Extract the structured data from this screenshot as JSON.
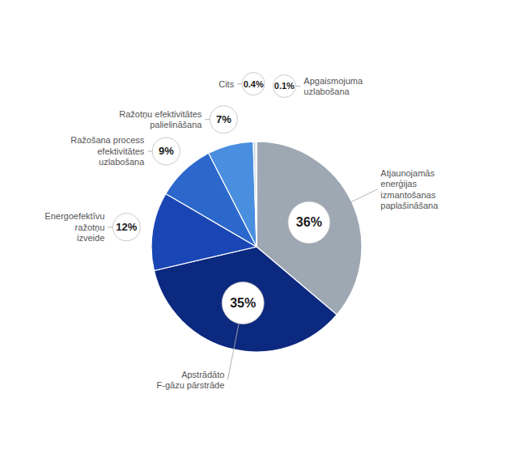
{
  "chart_data": {
    "type": "pie",
    "categories": [
      "Atjaunojamās\nenerģijas\nizmantošanas\npaplašināšana",
      "Apstrādāto\nF-gāzu pārstrāde",
      "Energoefektīvu\nražotņu\nizveide",
      "Ražošana process\nefektivitātes\nuzlabošana",
      "Ražotņu efektivitātes\npalielināšana",
      "Cits",
      "Apgaismojuma\nuzlabošana"
    ],
    "values": [
      36,
      35,
      12,
      9,
      7,
      0.4,
      0.1
    ],
    "value_labels": [
      "36%",
      "35%",
      "12%",
      "9%",
      "7%",
      "0.4%",
      "0.1%"
    ],
    "colors": [
      "#9da8b3",
      "#0c2980",
      "#1a46b5",
      "#2c68cc",
      "#4a8ee0",
      "#c5d3de",
      "#adc0d2"
    ],
    "data_labels": true
  }
}
